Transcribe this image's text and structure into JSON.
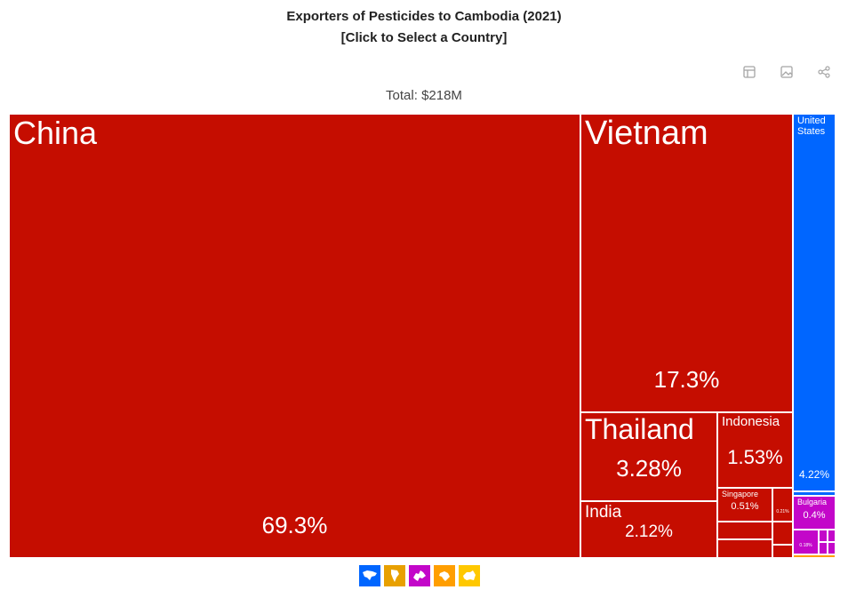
{
  "header": {
    "title_line1": "Exporters of Pesticides to Cambodia (2021)",
    "title_line2": "[Click to Select a Country]",
    "total": "Total: $218M"
  },
  "toolbar": [
    {
      "name": "table-icon"
    },
    {
      "name": "image-icon"
    },
    {
      "name": "share-icon"
    }
  ],
  "colors": {
    "asia": "#c50d00",
    "north_america": "#0066ff",
    "europe": "#c307c9",
    "africa": "#ff9e00",
    "oceania": "#ffc800",
    "south_america": "#e8a000"
  },
  "chart_data": {
    "type": "treemap",
    "title": "Exporters of Pesticides to Cambodia (2021)",
    "subtitle": "[Click to Select a Country]",
    "total": "Total: $218M",
    "tiles": [
      {
        "label": "China",
        "value": 69.3,
        "value_label": "69.3%",
        "region": "asia"
      },
      {
        "label": "Vietnam",
        "value": 17.3,
        "value_label": "17.3%",
        "region": "asia"
      },
      {
        "label": "Thailand",
        "value": 3.28,
        "value_label": "3.28%",
        "region": "asia"
      },
      {
        "label": "Indonesia",
        "value": 1.53,
        "value_label": "1.53%",
        "region": "asia"
      },
      {
        "label": "India",
        "value": 2.12,
        "value_label": "2.12%",
        "region": "asia"
      },
      {
        "label": "Singapore",
        "value": 0.51,
        "value_label": "0.51%",
        "region": "asia"
      },
      {
        "label": "",
        "value": 0.21,
        "value_label": "0.21%",
        "region": "asia"
      },
      {
        "label": "",
        "value": 0.3,
        "value_label": "",
        "region": "asia"
      },
      {
        "label": "",
        "value": 0.2,
        "value_label": "",
        "region": "asia"
      },
      {
        "label": "",
        "value": 0.1,
        "value_label": "",
        "region": "asia"
      },
      {
        "label": "",
        "value": 0.05,
        "value_label": "",
        "region": "asia"
      },
      {
        "label": "United States",
        "value": 4.22,
        "value_label": "4.22%",
        "region": "north_america"
      },
      {
        "label": "",
        "value": 0.05,
        "value_label": "",
        "region": "north_america"
      },
      {
        "label": "Bulgaria",
        "value": 0.4,
        "value_label": "0.4%",
        "region": "europe"
      },
      {
        "label": "",
        "value": 0.18,
        "value_label": "0.18%",
        "region": "europe"
      },
      {
        "label": "",
        "value": 0.05,
        "value_label": "",
        "region": "europe"
      },
      {
        "label": "",
        "value": 0.05,
        "value_label": "",
        "region": "europe"
      },
      {
        "label": "",
        "value": 0.03,
        "value_label": "",
        "region": "europe"
      },
      {
        "label": "",
        "value": 0.02,
        "value_label": "",
        "region": "europe"
      },
      {
        "label": "",
        "value": 0.02,
        "value_label": "",
        "region": "africa"
      }
    ],
    "legend": [
      {
        "region": "north_america",
        "icon": "north-america-icon"
      },
      {
        "region": "south_america",
        "icon": "south-america-icon"
      },
      {
        "region": "europe",
        "icon": "europe-icon"
      },
      {
        "region": "africa",
        "icon": "africa-icon"
      },
      {
        "region": "oceania",
        "icon": "oceania-icon"
      }
    ]
  }
}
